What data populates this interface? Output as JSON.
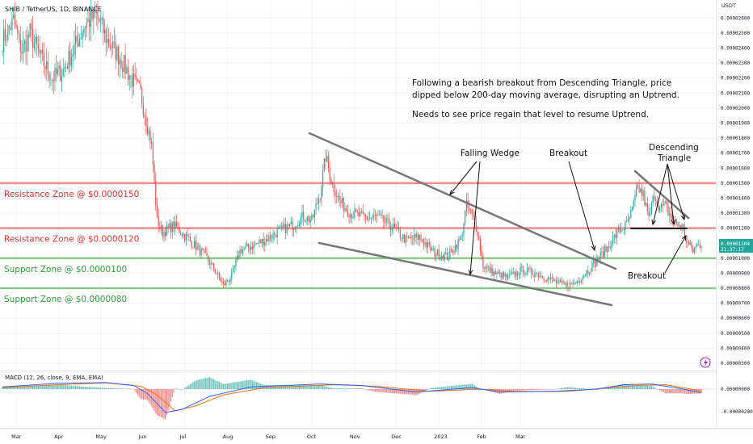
{
  "header": {
    "symbol": "SHIB / TetherUS, 1D, BINANCE",
    "currency": "USDT"
  },
  "price_badge": {
    "price": "0.00001104",
    "countdown": "21:37:17"
  },
  "annotation_text": {
    "line1": "Following a bearish breakout from Descending Triangle, price",
    "line2": "dipped below 200-day moving average, disrupting an Uptrend.",
    "line3": "Needs to see price regain that level to resume Uptrend."
  },
  "labels": {
    "falling_wedge": "Falling Wedge",
    "breakout_top": "Breakout",
    "descending_triangle_1": "Descending",
    "descending_triangle_2": "Triangle",
    "breakout_bottom": "Breakout"
  },
  "zones": [
    {
      "label": "Resistance Zone @ $0.0000150",
      "value": 1.5e-05,
      "color": "#f28b8b",
      "text_color": "#e03030"
    },
    {
      "label": "Resistance Zone @ $0.0000120",
      "value": 1.2e-05,
      "color": "#f28b8b",
      "text_color": "#e03030"
    },
    {
      "label": "Support Zone @ $0.0000100",
      "value": 1e-05,
      "color": "#8cc98c",
      "text_color": "#2e9e3a"
    },
    {
      "label": "Support Zone @ $0.0000080",
      "value": 8e-06,
      "color": "#8cc98c",
      "text_color": "#2e9e3a"
    }
  ],
  "macd": {
    "label": "MACD (12, 26, close, 9, EMA, EMA)",
    "ticks": [
      "0.00000000",
      "-0.00000200"
    ]
  },
  "colors": {
    "up": "#26a69a",
    "down": "#ef5350",
    "macd_line": "#2962ff",
    "signal_line": "#ff6d00",
    "badge": "#26a69a",
    "trendline": "#777777"
  },
  "chart_data": {
    "type": "candlestick",
    "title": "SHIB / TetherUS, 1D, BINANCE",
    "y_axis_label": "USDT",
    "ylim": [
      3e-06,
      2.65e-05
    ],
    "y_ticks": [
      "0.00002600",
      "0.00002500",
      "0.00002400",
      "0.00002300",
      "0.00002200",
      "0.00002100",
      "0.00002000",
      "0.00001900",
      "0.00001800",
      "0.00001700",
      "0.00001600",
      "0.00001500",
      "0.00001400",
      "0.00001300",
      "0.00001200",
      "0.00001100",
      "0.00001000",
      "0.00000900",
      "0.00000800",
      "0.00000700",
      "0.00000600",
      "0.00000500",
      "0.00000400",
      "0.00000300"
    ],
    "x_ticks": [
      "Mar",
      "Apr",
      "May",
      "Jun",
      "Jul",
      "Aug",
      "Sep",
      "Oct",
      "Nov",
      "Dec",
      "2023",
      "Feb",
      "Mar"
    ],
    "series": [
      {
        "name": "SHIB/USDT",
        "anchors": [
          [
            0,
            2.45e-05
          ],
          [
            8,
            2.58e-05
          ],
          [
            14,
            2.38e-05
          ],
          [
            20,
            2.5e-05
          ],
          [
            28,
            2.33e-05
          ],
          [
            36,
            2.2e-05
          ],
          [
            44,
            2.25e-05
          ],
          [
            52,
            2.4e-05
          ],
          [
            60,
            2.56e-05
          ],
          [
            68,
            2.62e-05
          ],
          [
            76,
            2.45e-05
          ],
          [
            84,
            2.35e-05
          ],
          [
            92,
            2.22e-05
          ],
          [
            100,
            2.1e-05
          ],
          [
            108,
            1.75e-05
          ],
          [
            112,
            1.25e-05
          ],
          [
            116,
            1.17e-05
          ],
          [
            124,
            1.22e-05
          ],
          [
            132,
            1.15e-05
          ],
          [
            140,
            1.08e-05
          ],
          [
            148,
            1e-05
          ],
          [
            155,
            9e-06
          ],
          [
            160,
            8.2e-06
          ],
          [
            166,
            8.8e-06
          ],
          [
            172,
            1.05e-05
          ],
          [
            180,
            1.08e-05
          ],
          [
            190,
            1.12e-05
          ],
          [
            200,
            1.18e-05
          ],
          [
            210,
            1.22e-05
          ],
          [
            218,
            1.28e-05
          ],
          [
            224,
            1.25e-05
          ],
          [
            230,
            1.43e-05
          ],
          [
            234,
            1.68e-05
          ],
          [
            238,
            1.52e-05
          ],
          [
            244,
            1.38e-05
          ],
          [
            252,
            1.3e-05
          ],
          [
            262,
            1.27e-05
          ],
          [
            272,
            1.27e-05
          ],
          [
            282,
            1.21e-05
          ],
          [
            292,
            1.12e-05
          ],
          [
            302,
            1.14e-05
          ],
          [
            312,
            1.04e-05
          ],
          [
            322,
            1.01e-05
          ],
          [
            332,
            1.13e-05
          ],
          [
            336,
            1.35e-05
          ],
          [
            340,
            1.28e-05
          ],
          [
            344,
            1.18e-05
          ],
          [
            348,
            9.5e-06
          ],
          [
            356,
            9e-06
          ],
          [
            366,
            8.7e-06
          ],
          [
            376,
            9.2e-06
          ],
          [
            386,
            9e-06
          ],
          [
            396,
            8.6e-06
          ],
          [
            406,
            8.2e-06
          ],
          [
            414,
            8.3e-06
          ],
          [
            422,
            9e-06
          ],
          [
            430,
            9.8e-06
          ],
          [
            438,
            1.07e-05
          ],
          [
            446,
            1.18e-05
          ],
          [
            452,
            1.22e-05
          ],
          [
            456,
            1.32e-05
          ],
          [
            460,
            1.47e-05
          ],
          [
            464,
            1.42e-05
          ],
          [
            468,
            1.26e-05
          ],
          [
            472,
            1.43e-05
          ],
          [
            476,
            1.33e-05
          ],
          [
            480,
            1.35e-05
          ],
          [
            484,
            1.27e-05
          ],
          [
            488,
            1.23e-05
          ],
          [
            492,
            1.21e-05
          ],
          [
            496,
            1.1e-05
          ],
          [
            500,
            1.05e-05
          ],
          [
            503,
            1.08e-05
          ],
          [
            506,
            1.1e-05
          ]
        ]
      }
    ],
    "macd_series": [
      {
        "name": "MACD",
        "anchors": [
          [
            0,
            0.3
          ],
          [
            40,
            0.8
          ],
          [
            75,
            0.9
          ],
          [
            95,
            0.5
          ],
          [
            105,
            -0.6
          ],
          [
            118,
            -3.2
          ],
          [
            130,
            -2.8
          ],
          [
            150,
            -1.0
          ],
          [
            180,
            0.3
          ],
          [
            230,
            0.7
          ],
          [
            260,
            0.5
          ],
          [
            300,
            -0.4
          ],
          [
            340,
            0.2
          ],
          [
            360,
            -0.4
          ],
          [
            400,
            -0.3
          ],
          [
            430,
            0.0
          ],
          [
            450,
            0.6
          ],
          [
            470,
            0.7
          ],
          [
            490,
            0.1
          ],
          [
            506,
            -0.5
          ]
        ]
      },
      {
        "name": "Signal",
        "anchors": [
          [
            0,
            0.2
          ],
          [
            40,
            0.6
          ],
          [
            75,
            0.85
          ],
          [
            100,
            0.4
          ],
          [
            112,
            -0.8
          ],
          [
            125,
            -3.0
          ],
          [
            140,
            -2.3
          ],
          [
            160,
            -0.8
          ],
          [
            190,
            0.2
          ],
          [
            240,
            0.6
          ],
          [
            270,
            0.4
          ],
          [
            310,
            -0.3
          ],
          [
            345,
            0.0
          ],
          [
            370,
            -0.3
          ],
          [
            410,
            -0.3
          ],
          [
            440,
            0.2
          ],
          [
            460,
            0.5
          ],
          [
            480,
            0.6
          ],
          [
            496,
            0.1
          ],
          [
            506,
            -0.3
          ]
        ]
      }
    ]
  }
}
